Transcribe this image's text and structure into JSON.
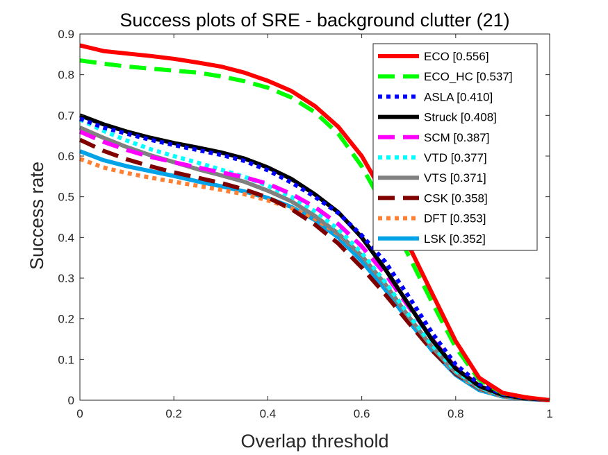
{
  "chart_data": {
    "type": "line",
    "title": "Success plots of SRE - background clutter (21)",
    "xlabel": "Overlap threshold",
    "ylabel": "Success rate",
    "xlim": [
      0,
      1
    ],
    "ylim": [
      0,
      0.9
    ],
    "xticks": [
      0,
      0.2,
      0.4,
      0.6,
      0.8,
      1
    ],
    "xtick_labels": [
      "0",
      "0.2",
      "0.4",
      "0.6",
      "0.8",
      "1"
    ],
    "yticks": [
      0,
      0.1,
      0.2,
      0.3,
      0.4,
      0.5,
      0.6,
      0.7,
      0.8,
      0.9
    ],
    "ytick_labels": [
      "0",
      "0.1",
      "0.2",
      "0.3",
      "0.4",
      "0.5",
      "0.6",
      "0.7",
      "0.8",
      "0.9"
    ],
    "grid": false,
    "legend_position": "top-right",
    "x": [
      0,
      0.05,
      0.1,
      0.15,
      0.2,
      0.25,
      0.3,
      0.35,
      0.4,
      0.45,
      0.5,
      0.55,
      0.6,
      0.65,
      0.7,
      0.75,
      0.8,
      0.85,
      0.9,
      0.95,
      1
    ],
    "series": [
      {
        "name": "ECO [0.556]",
        "color": "#ff0000",
        "dash": "solid",
        "values": [
          0.872,
          0.858,
          0.852,
          0.846,
          0.839,
          0.83,
          0.82,
          0.805,
          0.785,
          0.76,
          0.723,
          0.672,
          0.6,
          0.5,
          0.38,
          0.262,
          0.145,
          0.055,
          0.018,
          0.007,
          0.0
        ]
      },
      {
        "name": "ECO_HC [0.537]",
        "color": "#00ff00",
        "dash": "long",
        "values": [
          0.835,
          0.827,
          0.82,
          0.815,
          0.81,
          0.805,
          0.796,
          0.784,
          0.768,
          0.744,
          0.708,
          0.655,
          0.575,
          0.47,
          0.355,
          0.24,
          0.13,
          0.05,
          0.017,
          0.007,
          0.0
        ]
      },
      {
        "name": "ASLA [0.410]",
        "color": "#0000ff",
        "dash": "dot",
        "values": [
          0.692,
          0.67,
          0.655,
          0.64,
          0.627,
          0.615,
          0.603,
          0.588,
          0.565,
          0.535,
          0.5,
          0.46,
          0.405,
          0.34,
          0.255,
          0.165,
          0.088,
          0.04,
          0.015,
          0.006,
          0.0
        ]
      },
      {
        "name": "Struck [0.408]",
        "color": "#000000",
        "dash": "solid",
        "values": [
          0.7,
          0.678,
          0.66,
          0.645,
          0.632,
          0.621,
          0.609,
          0.594,
          0.572,
          0.544,
          0.506,
          0.462,
          0.4,
          0.322,
          0.235,
          0.148,
          0.078,
          0.035,
          0.013,
          0.005,
          0.0
        ]
      },
      {
        "name": "SCM [0.387]",
        "color": "#ff00ff",
        "dash": "long",
        "values": [
          0.66,
          0.635,
          0.615,
          0.598,
          0.585,
          0.572,
          0.56,
          0.548,
          0.532,
          0.507,
          0.475,
          0.433,
          0.378,
          0.31,
          0.23,
          0.15,
          0.08,
          0.036,
          0.014,
          0.005,
          0.0
        ]
      },
      {
        "name": "VTD [0.377]",
        "color": "#00ffff",
        "dash": "dot",
        "values": [
          0.69,
          0.662,
          0.638,
          0.617,
          0.6,
          0.584,
          0.567,
          0.549,
          0.527,
          0.5,
          0.465,
          0.42,
          0.362,
          0.29,
          0.21,
          0.135,
          0.072,
          0.032,
          0.012,
          0.005,
          0.0
        ]
      },
      {
        "name": "VTS [0.371]",
        "color": "#808080",
        "dash": "solid",
        "values": [
          0.67,
          0.645,
          0.622,
          0.602,
          0.585,
          0.568,
          0.553,
          0.537,
          0.515,
          0.489,
          0.453,
          0.41,
          0.355,
          0.285,
          0.205,
          0.13,
          0.068,
          0.03,
          0.011,
          0.004,
          0.0
        ]
      },
      {
        "name": "CSK [0.358]",
        "color": "#800000",
        "dash": "long",
        "values": [
          0.64,
          0.613,
          0.592,
          0.575,
          0.56,
          0.547,
          0.534,
          0.518,
          0.498,
          0.47,
          0.432,
          0.385,
          0.326,
          0.26,
          0.19,
          0.122,
          0.065,
          0.029,
          0.011,
          0.004,
          0.0
        ]
      },
      {
        "name": "DFT [0.353]",
        "color": "#ff8033",
        "dash": "dot",
        "values": [
          0.593,
          0.572,
          0.558,
          0.547,
          0.537,
          0.527,
          0.517,
          0.506,
          0.491,
          0.472,
          0.446,
          0.408,
          0.355,
          0.285,
          0.205,
          0.13,
          0.066,
          0.028,
          0.01,
          0.004,
          0.0
        ]
      },
      {
        "name": "LSK [0.352]",
        "color": "#00a2e8",
        "dash": "solid",
        "values": [
          0.612,
          0.59,
          0.575,
          0.563,
          0.551,
          0.538,
          0.526,
          0.513,
          0.497,
          0.475,
          0.443,
          0.4,
          0.342,
          0.272,
          0.195,
          0.122,
          0.062,
          0.025,
          0.009,
          0.003,
          0.0
        ]
      }
    ]
  }
}
